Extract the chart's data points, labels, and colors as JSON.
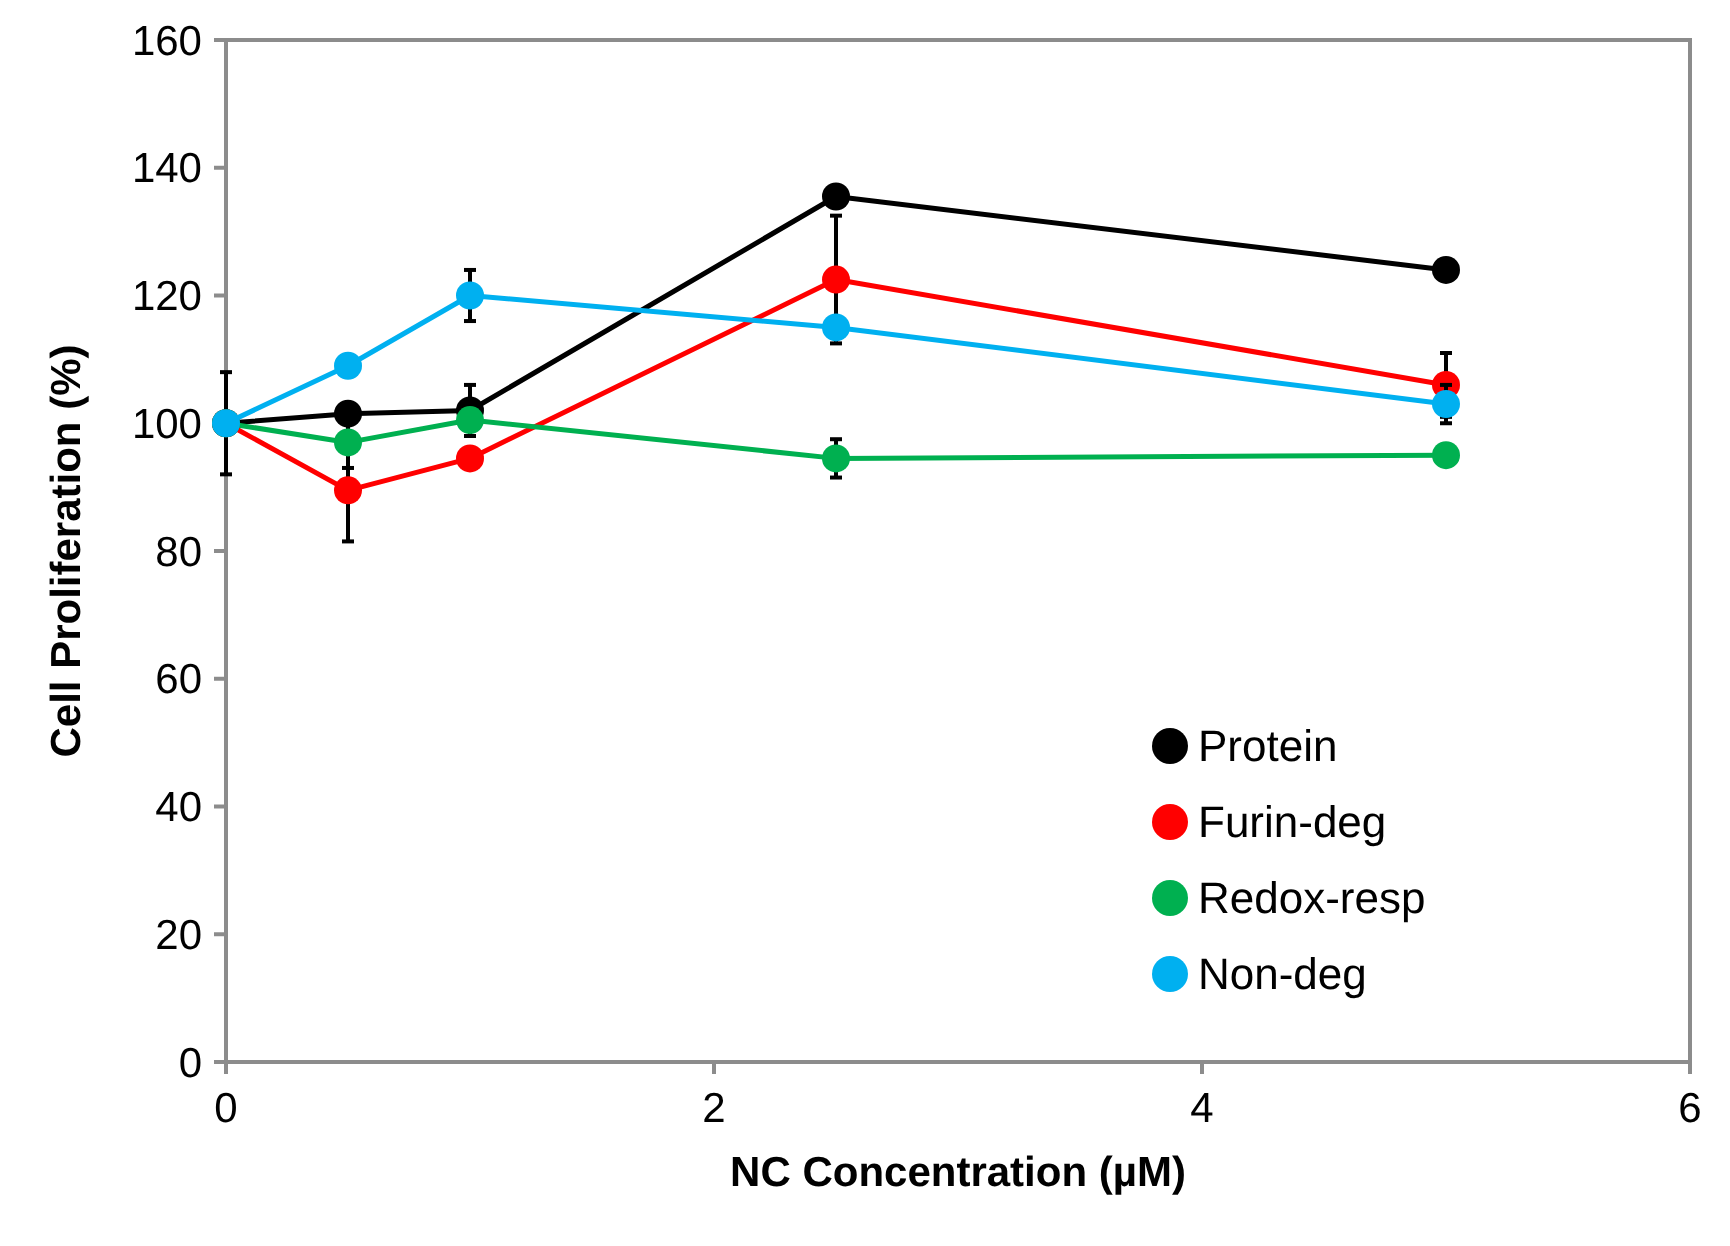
{
  "chart_data": {
    "type": "line",
    "xlabel": "NC Concentration (µM)",
    "ylabel": "Cell Proliferation (%)",
    "x": [
      0,
      0.5,
      1,
      2.5,
      5
    ],
    "xlim": [
      0,
      6
    ],
    "xticks": [
      0,
      2,
      4,
      6
    ],
    "ylim": [
      0,
      160
    ],
    "yticks": [
      0,
      20,
      40,
      60,
      80,
      100,
      120,
      140,
      160
    ],
    "grid": false,
    "legend": "bottom right",
    "marker": "circle",
    "line_style": "solid",
    "series": [
      {
        "name": "Protein",
        "color": "#000000",
        "values": [
          100,
          101.5,
          102,
          135.5,
          124
        ],
        "errors": [
          8,
          null,
          4,
          null,
          null
        ]
      },
      {
        "name": "Furin-deg",
        "color": "#ff0000",
        "values": [
          100,
          89.5,
          94.5,
          122.5,
          106
        ],
        "errors": [
          null,
          8,
          null,
          10,
          5
        ]
      },
      {
        "name": "Redox-resp",
        "color": "#00b050",
        "values": [
          100,
          97,
          100.5,
          94.5,
          95
        ],
        "errors": [
          null,
          4,
          null,
          3,
          null
        ]
      },
      {
        "name": "Non-deg",
        "color": "#00b0f0",
        "values": [
          100,
          109,
          120,
          115,
          103
        ],
        "errors": [
          null,
          null,
          4,
          null,
          3
        ]
      }
    ]
  }
}
